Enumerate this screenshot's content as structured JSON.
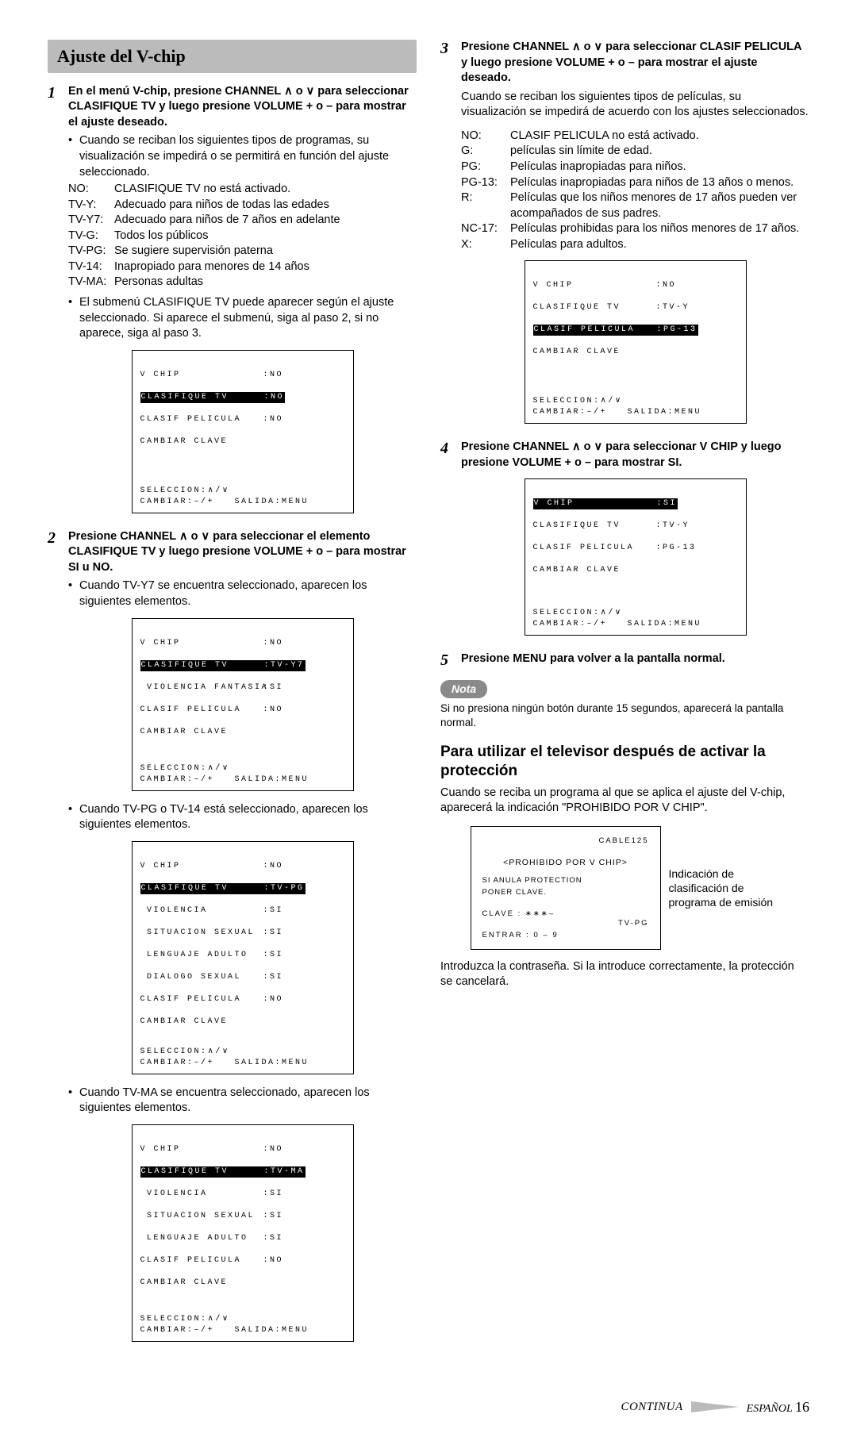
{
  "title": "Ajuste del V-chip",
  "left": {
    "step1": {
      "num": "1",
      "head_a": "En el menú V-chip, presione CHANNEL ",
      "head_b": " o ",
      "head_c": " para seleccionar CLASIFIQUE TV y luego presione VOLUME + o – para mostrar el ajuste deseado.",
      "bullet1": "Cuando se reciban los siguientes tipos de programas, su visualización se impedirá o se permitirá en función del ajuste seleccionado.",
      "ratings": [
        [
          "NO:",
          "CLASIFIQUE TV no está activado."
        ],
        [
          "TV-Y:",
          "Adecuado para niños de todas las edades"
        ],
        [
          "TV-Y7:",
          "Adecuado para niños de 7 años en adelante"
        ],
        [
          "TV-G:",
          "Todos los públicos"
        ],
        [
          "TV-PG:",
          "Se sugiere supervisión paterna"
        ],
        [
          "TV-14:",
          "Inapropiado para menores de 14 años"
        ],
        [
          "TV-MA:",
          "Personas adultas"
        ]
      ],
      "bullet2": "El submenú CLASIFIQUE TV puede aparecer según el ajuste seleccionado. Si aparece el submenú, siga al paso 2, si no aparece, siga al paso 3.",
      "osd1": {
        "vchip_l": "V CHIP",
        "vchip_v": ":NO",
        "clas_tv_l": "CLASIFIQUE TV",
        "clas_tv_v": ":NO",
        "clas_pel_l": "CLASIF PELICULA",
        "clas_pel_v": ":NO",
        "camb": "CAMBIAR CLAVE",
        "sel": "SELECCION:∧/∨",
        "foot": "CAMBIAR:–/+   SALIDA:MENU"
      }
    },
    "step2": {
      "num": "2",
      "head_a": "Presione CHANNEL ",
      "head_b": " o ",
      "head_c": " para seleccionar el elemento CLASIFIQUE TV y luego presione VOLUME + o – para mostrar SI u NO.",
      "bullet_y7": "Cuando TV-Y7 se encuentra seleccionado, aparecen los siguientes elementos.",
      "osd_y7": {
        "l1l": "V CHIP",
        "l1v": ":NO",
        "l2l": "CLASIFIQUE TV",
        "l2v": ":TV-Y7",
        "l3l": " VIOLENCIA FANTASIA",
        "l3v": ":SI",
        "l4l": "CLASIF PELICULA",
        "l4v": ":NO",
        "l5": "CAMBIAR CLAVE",
        "sel": "SELECCION:∧/∨",
        "foot": "CAMBIAR:–/+   SALIDA:MENU"
      },
      "bullet_pg": "Cuando TV-PG o TV-14 está seleccionado, aparecen los siguientes elementos.",
      "osd_pg": {
        "l1l": "V CHIP",
        "l1v": ":NO",
        "l2l": "CLASIFIQUE TV",
        "l2v": ":TV-PG",
        "l3l": " VIOLENCIA",
        "l3v": ":SI",
        "l4l": " SITUACION SEXUAL",
        "l4v": ":SI",
        "l5l": " LENGUAJE ADULTO",
        "l5v": ":SI",
        "l6l": " DIALOGO SEXUAL",
        "l6v": ":SI",
        "l7l": "CLASIF PELICULA",
        "l7v": ":NO",
        "l8": "CAMBIAR CLAVE",
        "sel": "SELECCION:∧/∨",
        "foot": "CAMBIAR:–/+   SALIDA:MENU"
      },
      "bullet_ma": "Cuando TV-MA se encuentra seleccionado, aparecen los siguientes elementos.",
      "osd_ma": {
        "l1l": "V CHIP",
        "l1v": ":NO",
        "l2l": "CLASIFIQUE TV",
        "l2v": ":TV-MA",
        "l3l": " VIOLENCIA",
        "l3v": ":SI",
        "l4l": " SITUACION SEXUAL",
        "l4v": ":SI",
        "l5l": " LENGUAJE ADULTO",
        "l5v": ":SI",
        "l6l": "CLASIF PELICULA",
        "l6v": ":NO",
        "l7": "CAMBIAR CLAVE",
        "sel": "SELECCION:∧/∨",
        "foot": "CAMBIAR:–/+   SALIDA:MENU"
      }
    }
  },
  "right": {
    "step3": {
      "num": "3",
      "head_a": "Presione CHANNEL ",
      "head_b": " o ",
      "head_c": " para seleccionar CLASIF PELICULA y luego presione VOLUME + o – para mostrar el ajuste deseado.",
      "p1": "Cuando se reciban los siguientes tipos de películas, su visualización se impedirá de acuerdo con los ajustes seleccionados.",
      "ratings": [
        [
          "NO:",
          "CLASIF PELICULA no está activado."
        ],
        [
          "G:",
          "películas sin límite de edad."
        ],
        [
          "PG:",
          "Películas inapropiadas para niños."
        ],
        [
          "PG-13:",
          "Películas inapropiadas para niños de 13 años o menos."
        ],
        [
          "R:",
          "Películas que los niños menores de 17 años pueden ver acompañados de sus padres."
        ],
        [
          "NC-17:",
          "Películas prohibidas para los niños menores de 17 años."
        ],
        [
          "X:",
          "Películas para adultos."
        ]
      ],
      "osd": {
        "l1l": "V CHIP",
        "l1v": ":NO",
        "l2l": "CLASIFIQUE TV",
        "l2v": ":TV-Y",
        "l3l": "CLASIF PELICULA",
        "l3v": ":PG-13",
        "l4": "CAMBIAR CLAVE",
        "sel": "SELECCION:∧/∨",
        "foot": "CAMBIAR:–/+   SALIDA:MENU"
      }
    },
    "step4": {
      "num": "4",
      "head_a": "Presione CHANNEL ",
      "head_b": " o ",
      "head_c": " para seleccionar V CHIP y luego presione VOLUME + o – para mostrar SI.",
      "osd": {
        "l1l": "V CHIP",
        "l1v": ":SI",
        "l2l": "CLASIFIQUE TV",
        "l2v": ":TV-Y",
        "l3l": "CLASIF PELICULA",
        "l3v": ":PG-13",
        "l4": "CAMBIAR CLAVE",
        "sel": "SELECCION:∧/∨",
        "foot": "CAMBIAR:–/+   SALIDA:MENU"
      }
    },
    "step5": {
      "num": "5",
      "head": "Presione MENU para volver a la pantalla normal."
    },
    "nota_label": "Nota",
    "nota_text": "Si no presiona ningún botón durante 15 segundos, aparecerá la pantalla normal.",
    "section2": {
      "title": "Para utilizar el televisor después de activar la protección",
      "p1": "Cuando se reciba un programa al que se aplica el ajuste del V-chip, aparecerá la indicación \"PROHIBIDO POR V CHIP\".",
      "tvbox": {
        "cable": "CABLE125",
        "proh": "<PROHIBIDO POR V CHIP>",
        "anula": "SI ANULA PROTECTION",
        "poner": "PONER CLAVE.",
        "clave": "CLAVE : ∗∗∗–",
        "tvpg": "TV-PG",
        "entrar": "ENTRAR : 0 – 9"
      },
      "annot": "Indicación de clasificación de programa de emisión",
      "p2": "Introduzca la contraseña. Si la introduce correctamente, la protección se cancelará."
    }
  },
  "footer": {
    "continua": "CONTINUA",
    "lang": "ESPAÑOL",
    "page": "16"
  },
  "glyphs": {
    "up": "∧",
    "down": "∨",
    "bullet": "•"
  }
}
